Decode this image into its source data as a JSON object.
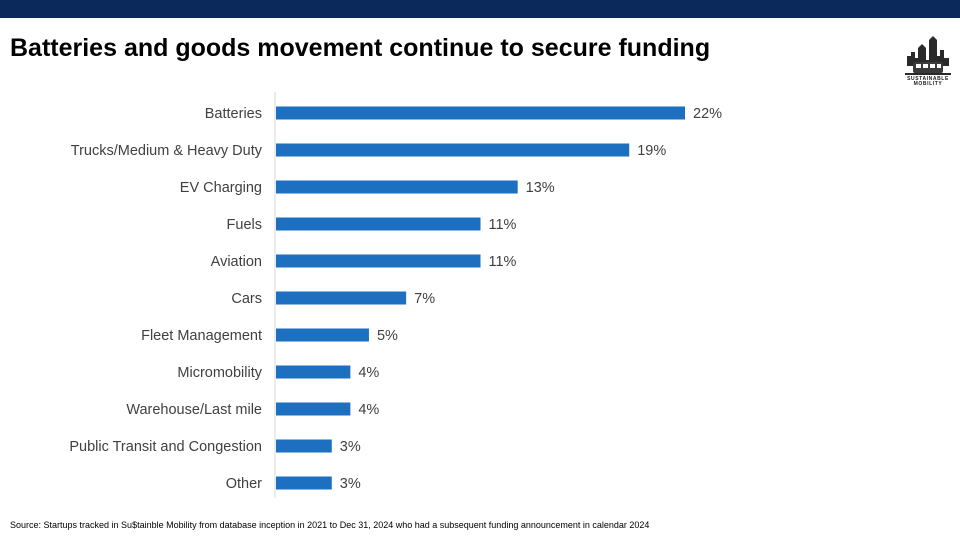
{
  "colors": {
    "top_bar": "#0b2a5b",
    "bar": "#1d6fc0",
    "label_text": "#404040",
    "axis_line": "#d9d9d9"
  },
  "header": {
    "title": "Batteries and goods movement continue to secure funding"
  },
  "logo": {
    "icon": "skyline-tram-logo",
    "caption": "SUSTAINABLE MOBILITY"
  },
  "chart_data": {
    "type": "bar",
    "orientation": "horizontal",
    "categories": [
      "Batteries",
      "Trucks/Medium & Heavy Duty",
      "EV Charging",
      "Fuels",
      "Aviation",
      "Cars",
      "Fleet Management",
      "Micromobility",
      "Warehouse/Last mile",
      "Public Transit and Congestion",
      "Other"
    ],
    "values": [
      22,
      19,
      13,
      11,
      11,
      7,
      5,
      4,
      4,
      3,
      3
    ],
    "value_labels": [
      "22%",
      "19%",
      "13%",
      "11%",
      "11%",
      "7%",
      "5%",
      "4%",
      "4%",
      "3%",
      "3%"
    ],
    "unit": "%",
    "xlim": [
      0,
      22
    ],
    "grid": false,
    "legend": "none"
  },
  "footer": {
    "source": "Source: Startups tracked in Su$tainble Mobility from database inception in 2021 to Dec 31, 2024 who had a subsequent funding announcement in calendar 2024"
  }
}
